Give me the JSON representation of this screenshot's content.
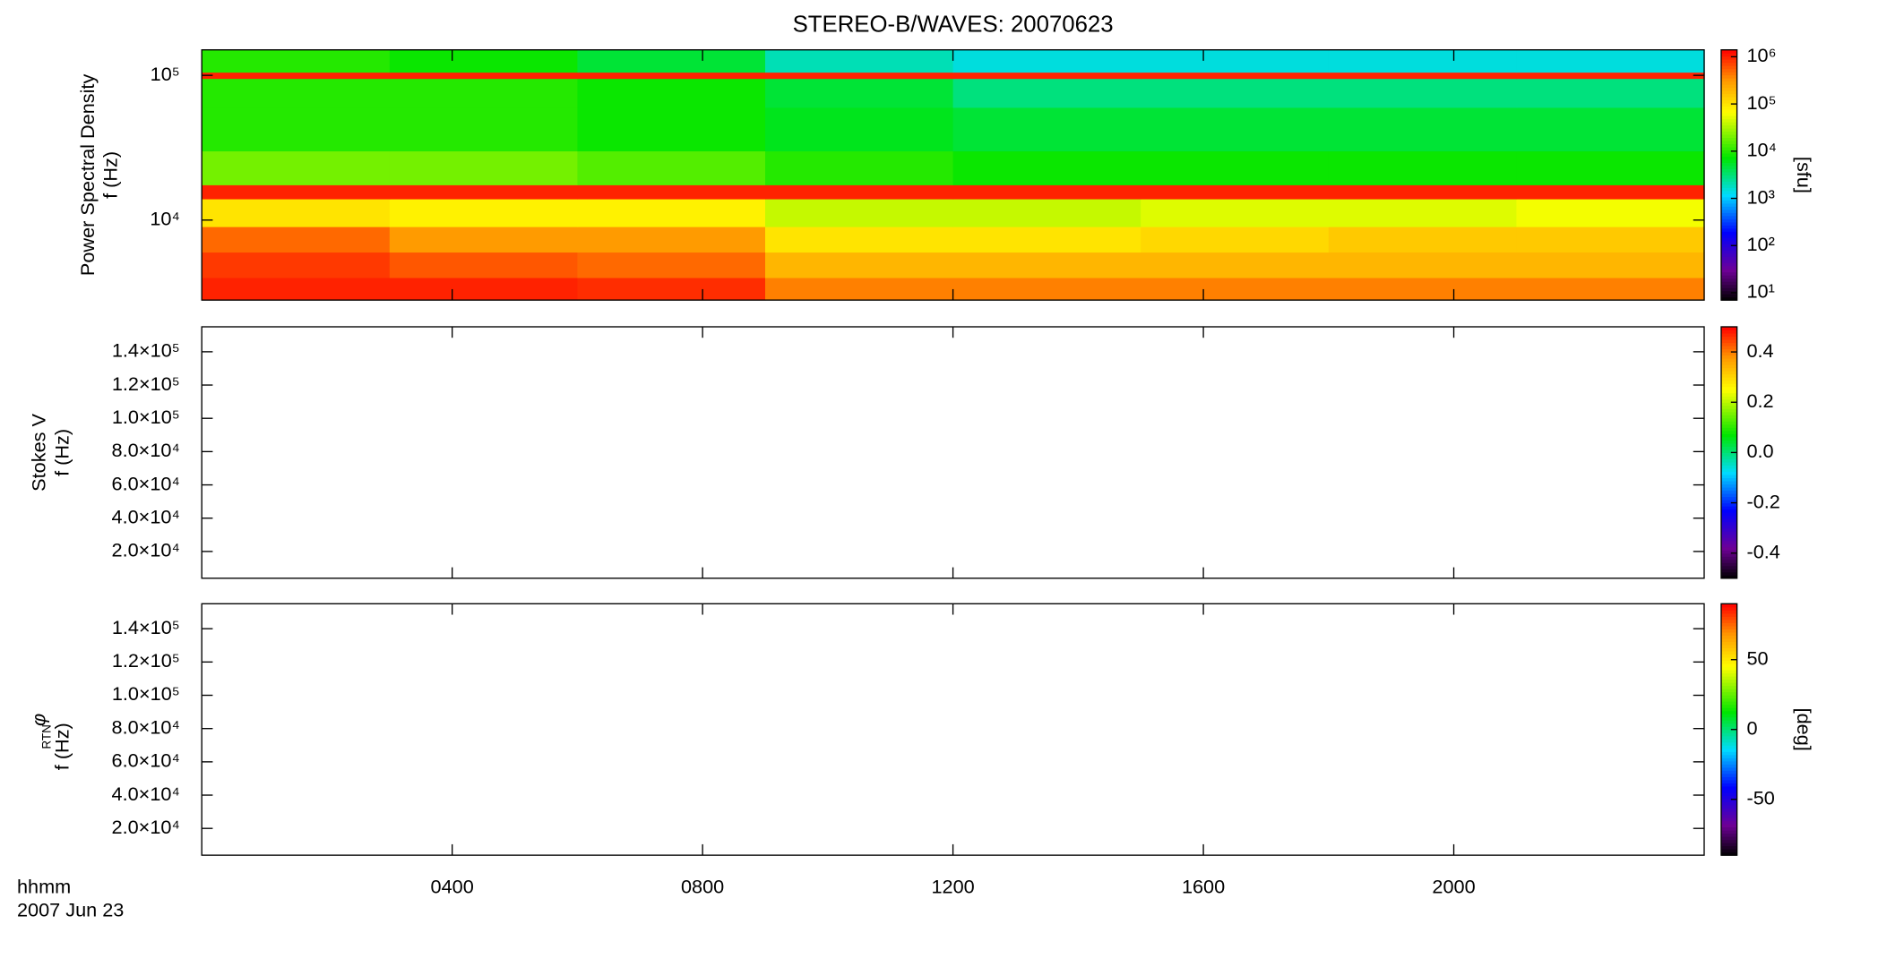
{
  "chart_data": [
    {
      "type": "heatmap",
      "title": "STEREO-B/WAVES: 20070623",
      "y_label": "Power Spectral Density",
      "y_sublabel": "f (Hz)",
      "ylog": true,
      "ylim": [
        2800,
        150000
      ],
      "yticks": [
        {
          "value": 10000,
          "label": "10⁴"
        },
        {
          "value": 100000,
          "label": "10⁵"
        }
      ],
      "xlim": [
        0,
        24
      ],
      "time_edges": [
        0,
        3,
        6,
        9,
        12,
        15,
        18,
        21,
        24
      ],
      "freq_edges": [
        2800,
        4000,
        6000,
        9000,
        14000,
        17500,
        30000,
        60000,
        95000,
        105000,
        150000
      ],
      "z": [
        [
          1000000,
          1000000,
          900000,
          400000,
          400000,
          400000,
          400000,
          400000
        ],
        [
          800000,
          600000,
          500000,
          200000,
          200000,
          200000,
          200000,
          200000
        ],
        [
          500000,
          300000,
          300000,
          100000,
          100000,
          120000,
          150000,
          150000
        ],
        [
          100000,
          80000,
          80000,
          40000,
          40000,
          50000,
          50000,
          60000
        ],
        [
          1000000,
          1000000,
          1000000,
          1000000,
          1000000,
          1000000,
          1000000,
          1000000
        ],
        [
          20000,
          20000,
          15000,
          10000,
          8000,
          8000,
          8000,
          8000
        ],
        [
          10000,
          10000,
          8000,
          6000,
          5000,
          5000,
          5000,
          5000
        ],
        [
          10000,
          10000,
          8000,
          5000,
          3000,
          3000,
          3000,
          3000
        ],
        [
          1000000,
          1000000,
          1000000,
          1000000,
          1000000,
          1000000,
          1000000,
          1000000
        ],
        [
          10000,
          8000,
          5000,
          2000,
          1500,
          1500,
          1500,
          1500
        ]
      ],
      "colormap": "rainbow",
      "clog": true,
      "clim": [
        7,
        1400000
      ],
      "cticks": [
        {
          "value": 10,
          "label": "10¹"
        },
        {
          "value": 100,
          "label": "10²"
        },
        {
          "value": 1000,
          "label": "10³"
        },
        {
          "value": 10000,
          "label": "10⁴"
        },
        {
          "value": 100000,
          "label": "10⁵"
        },
        {
          "value": 1000000,
          "label": "10⁶"
        }
      ],
      "c_label": "[sfu]"
    },
    {
      "type": "heatmap",
      "y_label": "Stokes V",
      "y_sublabel": "f (Hz)",
      "ylim": [
        3900,
        155000
      ],
      "yticks": [
        {
          "value": 20000,
          "label": "2.0×10⁴"
        },
        {
          "value": 40000,
          "label": "4.0×10⁴"
        },
        {
          "value": 60000,
          "label": "6.0×10⁴"
        },
        {
          "value": 80000,
          "label": "8.0×10⁴"
        },
        {
          "value": 100000,
          "label": "1.0×10⁵"
        },
        {
          "value": 120000,
          "label": "1.2×10⁵"
        },
        {
          "value": 140000,
          "label": "1.4×10⁵"
        }
      ],
      "xlim": [
        0,
        24
      ],
      "colormap": "rainbow",
      "clim": [
        -0.5,
        0.5
      ],
      "cticks": [
        -0.4,
        -0.2,
        {
          "value": 0,
          "label": "0.0"
        },
        0.2,
        0.4
      ]
    },
    {
      "type": "heatmap",
      "y_label": "φ",
      "y_label_subscript": "RTN",
      "y_sublabel": "f (Hz)",
      "ylim": [
        3900,
        155000
      ],
      "yticks": [
        {
          "value": 20000,
          "label": "2.0×10⁴"
        },
        {
          "value": 40000,
          "label": "4.0×10⁴"
        },
        {
          "value": 60000,
          "label": "6.0×10⁴"
        },
        {
          "value": 80000,
          "label": "8.0×10⁴"
        },
        {
          "value": 100000,
          "label": "1.0×10⁵"
        },
        {
          "value": 120000,
          "label": "1.2×10⁵"
        },
        {
          "value": 140000,
          "label": "1.4×10⁵"
        }
      ],
      "xlim": [
        0,
        24
      ],
      "xticks": [
        {
          "value": 4,
          "label": "0400"
        },
        {
          "value": 8,
          "label": "0800"
        },
        {
          "value": 12,
          "label": "1200"
        },
        {
          "value": 16,
          "label": "1600"
        },
        {
          "value": 20,
          "label": "2000"
        }
      ],
      "x_label": "hhmm",
      "date_label": "2007 Jun 23",
      "colormap": "rainbow",
      "clim": [
        -90,
        90
      ],
      "cticks": [
        -50,
        0,
        50
      ],
      "c_label": "[deg]"
    }
  ]
}
